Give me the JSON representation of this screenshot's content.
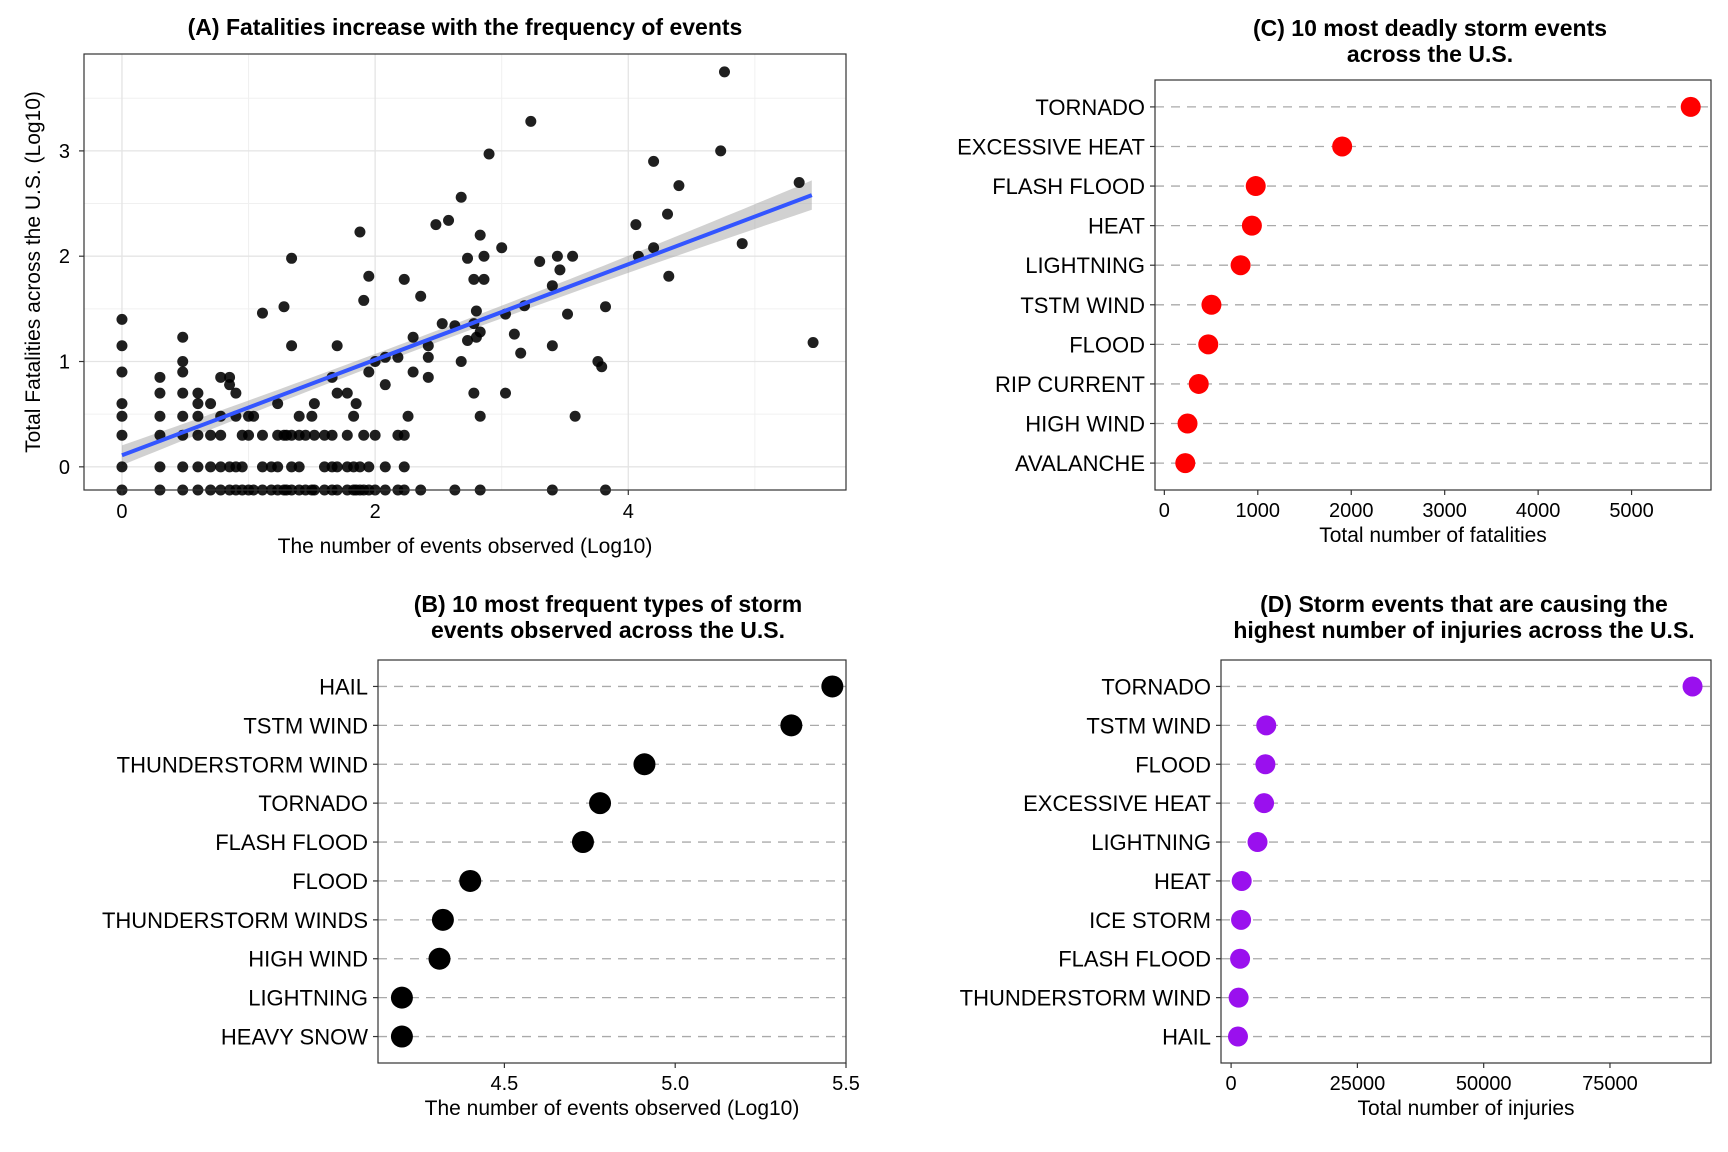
{
  "chart_data": [
    {
      "panel": "A",
      "type": "scatter",
      "title": "(A) Fatalities increase with the frequency of events",
      "xlabel": "The number of events observed (Log10)",
      "ylabel": "Total Fatalities across the U.S. (Log10)",
      "xlim": [
        -0.3,
        5.72
      ],
      "ylim": [
        -0.22,
        3.92
      ],
      "xticks": [
        0,
        2,
        4
      ],
      "yticks": [
        0,
        1,
        2,
        3
      ],
      "grid": true,
      "fit": {
        "method": "linear regression with confidence band",
        "color": "#3355ff",
        "x0": 0,
        "y0": 0.11,
        "x1": 5.45,
        "y1": 2.58
      },
      "points": [
        [
          0,
          1.4
        ],
        [
          0,
          1.15
        ],
        [
          0,
          0.9
        ],
        [
          0,
          0.6
        ],
        [
          0,
          0.48
        ],
        [
          0,
          0.3
        ],
        [
          0,
          0
        ],
        [
          0,
          -0.22
        ],
        [
          0.3,
          0.85
        ],
        [
          0.3,
          0.7
        ],
        [
          0.3,
          0.48
        ],
        [
          0.3,
          0.3
        ],
        [
          0.3,
          0
        ],
        [
          0.3,
          -0.22
        ],
        [
          0.48,
          1.23
        ],
        [
          0.48,
          1.0
        ],
        [
          0.48,
          0.9
        ],
        [
          0.48,
          0.7
        ],
        [
          0.48,
          0.48
        ],
        [
          0.48,
          0.3
        ],
        [
          0.48,
          0
        ],
        [
          0.48,
          -0.22
        ],
        [
          0.6,
          0.7
        ],
        [
          0.6,
          0.6
        ],
        [
          0.6,
          0.48
        ],
        [
          0.6,
          0.3
        ],
        [
          0.6,
          0
        ],
        [
          0.6,
          -0.22
        ],
        [
          0.7,
          0.6
        ],
        [
          0.7,
          0.3
        ],
        [
          0.7,
          0
        ],
        [
          0.7,
          -0.22
        ],
        [
          0.78,
          0.85
        ],
        [
          0.78,
          0.48
        ],
        [
          0.78,
          0.3
        ],
        [
          0.78,
          0
        ],
        [
          0.78,
          -0.22
        ],
        [
          0.85,
          0.85
        ],
        [
          0.85,
          0.78
        ],
        [
          0.85,
          0
        ],
        [
          0.85,
          -0.22
        ],
        [
          0.9,
          0.7
        ],
        [
          0.9,
          0.48
        ],
        [
          0.9,
          0
        ],
        [
          0.9,
          -0.22
        ],
        [
          0.95,
          0.3
        ],
        [
          0.95,
          0
        ],
        [
          0.95,
          -0.22
        ],
        [
          1.0,
          0.48
        ],
        [
          1.0,
          0.3
        ],
        [
          1.0,
          -0.22
        ],
        [
          1.04,
          0.48
        ],
        [
          1.04,
          -0.22
        ],
        [
          1.11,
          1.46
        ],
        [
          1.11,
          0.3
        ],
        [
          1.11,
          0
        ],
        [
          1.11,
          -0.22
        ],
        [
          1.18,
          0
        ],
        [
          1.18,
          -0.22
        ],
        [
          1.23,
          0.6
        ],
        [
          1.23,
          0.3
        ],
        [
          1.23,
          0
        ],
        [
          1.23,
          -0.22
        ],
        [
          1.28,
          1.52
        ],
        [
          1.28,
          0.3
        ],
        [
          1.28,
          -0.22
        ],
        [
          1.3,
          0.3
        ],
        [
          1.3,
          -0.22
        ],
        [
          1.34,
          1.98
        ],
        [
          1.34,
          1.15
        ],
        [
          1.34,
          0.3
        ],
        [
          1.34,
          0
        ],
        [
          1.34,
          -0.22
        ],
        [
          1.4,
          0.48
        ],
        [
          1.4,
          0.3
        ],
        [
          1.4,
          0
        ],
        [
          1.4,
          -0.22
        ],
        [
          1.45,
          0.3
        ],
        [
          1.45,
          -0.22
        ],
        [
          1.5,
          0.48
        ],
        [
          1.5,
          -0.22
        ],
        [
          1.52,
          0.6
        ],
        [
          1.52,
          0.3
        ],
        [
          1.52,
          -0.22
        ],
        [
          1.6,
          0.3
        ],
        [
          1.6,
          0
        ],
        [
          1.6,
          -0.22
        ],
        [
          1.66,
          0.85
        ],
        [
          1.66,
          0.3
        ],
        [
          1.66,
          0
        ],
        [
          1.66,
          -0.22
        ],
        [
          1.7,
          1.15
        ],
        [
          1.7,
          0.7
        ],
        [
          1.7,
          0
        ],
        [
          1.7,
          -0.22
        ],
        [
          1.78,
          0.7
        ],
        [
          1.78,
          0.3
        ],
        [
          1.78,
          0
        ],
        [
          1.78,
          -0.22
        ],
        [
          1.83,
          0.48
        ],
        [
          1.83,
          0
        ],
        [
          1.83,
          -0.22
        ],
        [
          1.85,
          0.6
        ],
        [
          1.85,
          -0.22
        ],
        [
          1.88,
          2.23
        ],
        [
          1.88,
          0
        ],
        [
          1.88,
          -0.22
        ],
        [
          1.91,
          1.58
        ],
        [
          1.91,
          0.3
        ],
        [
          1.91,
          -0.22
        ],
        [
          1.95,
          1.81
        ],
        [
          1.95,
          0.9
        ],
        [
          1.95,
          0
        ],
        [
          1.95,
          -0.22
        ],
        [
          2.0,
          1.0
        ],
        [
          2.0,
          0.3
        ],
        [
          2.0,
          -0.22
        ],
        [
          2.08,
          1.04
        ],
        [
          2.08,
          0.78
        ],
        [
          2.08,
          0
        ],
        [
          2.08,
          -0.22
        ],
        [
          2.18,
          1.04
        ],
        [
          2.18,
          0.3
        ],
        [
          2.18,
          -0.22
        ],
        [
          2.23,
          1.78
        ],
        [
          2.23,
          0.3
        ],
        [
          2.23,
          0
        ],
        [
          2.23,
          -0.22
        ],
        [
          2.26,
          0.48
        ],
        [
          2.3,
          1.23
        ],
        [
          2.3,
          0.9
        ],
        [
          2.36,
          1.62
        ],
        [
          2.36,
          -0.22
        ],
        [
          2.42,
          1.15
        ],
        [
          2.42,
          0.85
        ],
        [
          2.42,
          1.04
        ],
        [
          2.48,
          2.3
        ],
        [
          2.53,
          1.36
        ],
        [
          2.58,
          2.34
        ],
        [
          2.63,
          1.34
        ],
        [
          2.63,
          -0.22
        ],
        [
          2.68,
          2.56
        ],
        [
          2.68,
          1.0
        ],
        [
          2.73,
          1.98
        ],
        [
          2.73,
          1.2
        ],
        [
          2.78,
          1.78
        ],
        [
          2.78,
          1.36
        ],
        [
          2.78,
          0.7
        ],
        [
          2.8,
          1.48
        ],
        [
          2.8,
          1.23
        ],
        [
          2.83,
          2.2
        ],
        [
          2.83,
          1.28
        ],
        [
          2.83,
          0.48
        ],
        [
          2.83,
          -0.22
        ],
        [
          2.86,
          2.0
        ],
        [
          2.86,
          1.78
        ],
        [
          2.9,
          2.97
        ],
        [
          3.0,
          2.08
        ],
        [
          3.03,
          1.45
        ],
        [
          3.03,
          0.7
        ],
        [
          3.1,
          1.26
        ],
        [
          3.15,
          1.08
        ],
        [
          3.18,
          1.53
        ],
        [
          3.23,
          3.28
        ],
        [
          3.3,
          1.95
        ],
        [
          3.4,
          1.72
        ],
        [
          3.4,
          1.15
        ],
        [
          3.4,
          -0.22
        ],
        [
          3.44,
          2.0
        ],
        [
          3.46,
          1.87
        ],
        [
          3.52,
          1.45
        ],
        [
          3.56,
          2.0
        ],
        [
          3.58,
          0.48
        ],
        [
          3.76,
          1.0
        ],
        [
          3.79,
          0.95
        ],
        [
          3.82,
          1.52
        ],
        [
          3.82,
          -0.22
        ],
        [
          4.06,
          2.3
        ],
        [
          4.08,
          2.0
        ],
        [
          4.2,
          2.9
        ],
        [
          4.2,
          2.08
        ],
        [
          4.31,
          2.4
        ],
        [
          4.32,
          1.81
        ],
        [
          4.4,
          2.67
        ],
        [
          4.73,
          3.0
        ],
        [
          4.76,
          3.75
        ],
        [
          4.9,
          2.12
        ],
        [
          5.35,
          2.7
        ],
        [
          5.46,
          1.18
        ]
      ]
    },
    {
      "panel": "C",
      "type": "scatter",
      "title": "(C) 10 most deadly storm events\n   across the U.S.",
      "xlabel": "Total number of fatalities",
      "ylabel": "",
      "xlim": [
        -100,
        5850
      ],
      "xticks": [
        0,
        1000,
        2000,
        3000,
        4000,
        5000
      ],
      "color": "#ff0000",
      "categories": [
        "TORNADO",
        "EXCESSIVE HEAT",
        "FLASH FLOOD",
        "HEAT",
        "LIGHTNING",
        "TSTM WIND",
        "FLOOD",
        "RIP CURRENT",
        "HIGH WIND",
        "AVALANCHE"
      ],
      "values": [
        5633,
        1903,
        978,
        937,
        816,
        504,
        470,
        368,
        248,
        224
      ]
    },
    {
      "panel": "B",
      "type": "scatter",
      "title": "(B) 10 most frequent types of storm\nevents observed across the U.S.",
      "xlabel": "The number of events observed (Log10)",
      "ylabel": "",
      "xlim": [
        4.13,
        5.5
      ],
      "xticks": [
        4.5,
        5.0,
        5.5
      ],
      "xtick_labels": [
        "4.5",
        "5.0",
        "5.5"
      ],
      "color": "#000000",
      "categories": [
        "HAIL",
        "TSTM WIND",
        "THUNDERSTORM WIND",
        "TORNADO",
        "FLASH FLOOD",
        "FLOOD",
        "THUNDERSTORM WINDS",
        "HIGH WIND",
        "LIGHTNING",
        "HEAVY SNOW"
      ],
      "values": [
        5.46,
        5.34,
        4.91,
        4.78,
        4.73,
        4.4,
        4.32,
        4.31,
        4.2,
        4.2
      ]
    },
    {
      "panel": "D",
      "type": "scatter",
      "title": "(D) Storm events that are causing the\nhighest number of injuries across the U.S.",
      "xlabel": "Total number of injuries",
      "ylabel": "",
      "xlim": [
        -2000,
        95000
      ],
      "xticks": [
        0,
        25000,
        50000,
        75000
      ],
      "color": "#9a10ee",
      "categories": [
        "TORNADO",
        "TSTM WIND",
        "FLOOD",
        "EXCESSIVE HEAT",
        "LIGHTNING",
        "HEAT",
        "ICE STORM",
        "FLASH FLOOD",
        "THUNDERSTORM WIND",
        "HAIL"
      ],
      "values": [
        91346,
        6957,
        6789,
        6525,
        5230,
        2100,
        1975,
        1777,
        1488,
        1361
      ]
    }
  ]
}
